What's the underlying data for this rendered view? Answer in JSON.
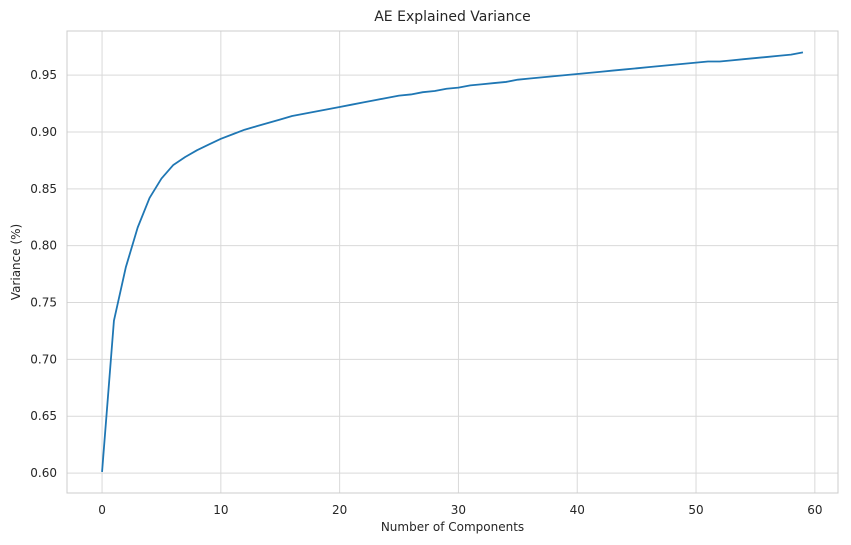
{
  "chart_data": {
    "type": "line",
    "title": "AE Explained Variance",
    "xlabel": "Number of Components",
    "ylabel": "Variance (%)",
    "xlim": [
      -2.95,
      61.95
    ],
    "ylim": [
      0.5825,
      0.9888
    ],
    "xticks": [
      0,
      10,
      20,
      30,
      40,
      50,
      60
    ],
    "xtick_labels": [
      "0",
      "10",
      "20",
      "30",
      "40",
      "50",
      "60"
    ],
    "yticks": [
      0.6,
      0.65,
      0.7,
      0.75,
      0.8,
      0.85,
      0.9,
      0.95
    ],
    "ytick_labels": [
      "0.60",
      "0.65",
      "0.70",
      "0.75",
      "0.80",
      "0.85",
      "0.90",
      "0.95"
    ],
    "grid": true,
    "series": [
      {
        "color": "#1f77b4",
        "x": [
          0,
          1,
          2,
          3,
          4,
          5,
          6,
          7,
          8,
          9,
          10,
          11,
          12,
          13,
          14,
          15,
          16,
          17,
          18,
          19,
          20,
          21,
          22,
          23,
          24,
          25,
          26,
          27,
          28,
          29,
          30,
          31,
          32,
          33,
          34,
          35,
          36,
          37,
          38,
          39,
          40,
          41,
          42,
          43,
          44,
          45,
          46,
          47,
          48,
          49,
          50,
          51,
          52,
          53,
          54,
          55,
          56,
          57,
          58,
          59
        ],
        "values": [
          0.601,
          0.734,
          0.781,
          0.816,
          0.842,
          0.859,
          0.871,
          0.878,
          0.884,
          0.889,
          0.894,
          0.898,
          0.902,
          0.905,
          0.908,
          0.911,
          0.914,
          0.916,
          0.918,
          0.92,
          0.922,
          0.924,
          0.926,
          0.928,
          0.93,
          0.932,
          0.933,
          0.935,
          0.936,
          0.938,
          0.939,
          0.941,
          0.942,
          0.943,
          0.944,
          0.946,
          0.947,
          0.948,
          0.949,
          0.95,
          0.951,
          0.952,
          0.953,
          0.954,
          0.955,
          0.956,
          0.957,
          0.958,
          0.959,
          0.96,
          0.961,
          0.962,
          0.962,
          0.963,
          0.964,
          0.965,
          0.966,
          0.967,
          0.968,
          0.97
        ]
      }
    ]
  }
}
